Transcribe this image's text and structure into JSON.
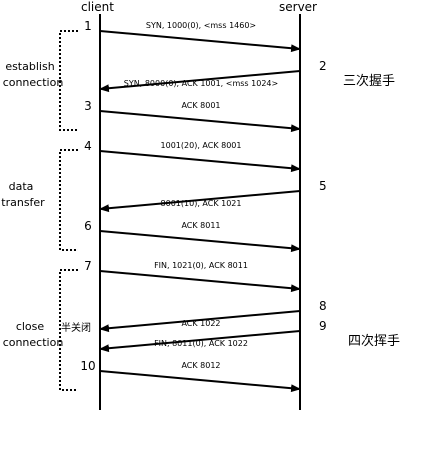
{
  "endpoints": {
    "client": "client",
    "server": "server"
  },
  "phases": [
    {
      "lines": [
        "establish",
        "connection"
      ]
    },
    {
      "lines": [
        "data",
        "transfer"
      ]
    },
    {
      "lines": [
        "close",
        "connection"
      ]
    }
  ],
  "messages": [
    {
      "from": "client",
      "step": "1",
      "label": "SYN, 1000(0), <mss 1460>"
    },
    {
      "from": "server",
      "step": "2",
      "label": "SYN, 8000(0), ACK 1001, <mss 1024>"
    },
    {
      "from": "client",
      "step": "3",
      "label": "ACK 8001"
    },
    {
      "from": "client",
      "step": "4",
      "label": "1001(20), ACK 8001"
    },
    {
      "from": "server",
      "step": "5",
      "label": "8001(10), ACK 1021"
    },
    {
      "from": "client",
      "step": "6",
      "label": "ACK 8011"
    },
    {
      "from": "client",
      "step": "7",
      "label": "FIN, 1021(0), ACK 8011"
    },
    {
      "from": "server",
      "step": "8",
      "label": "ACK 1022"
    },
    {
      "from": "server",
      "step": "9",
      "label": "FIN, 8011(0), ACK 1022"
    },
    {
      "from": "client",
      "step": "10",
      "label": "ACK 8012"
    }
  ],
  "notes": {
    "handshake": "三次握手",
    "wave": "四次挥手",
    "half_close": "半关闭"
  }
}
